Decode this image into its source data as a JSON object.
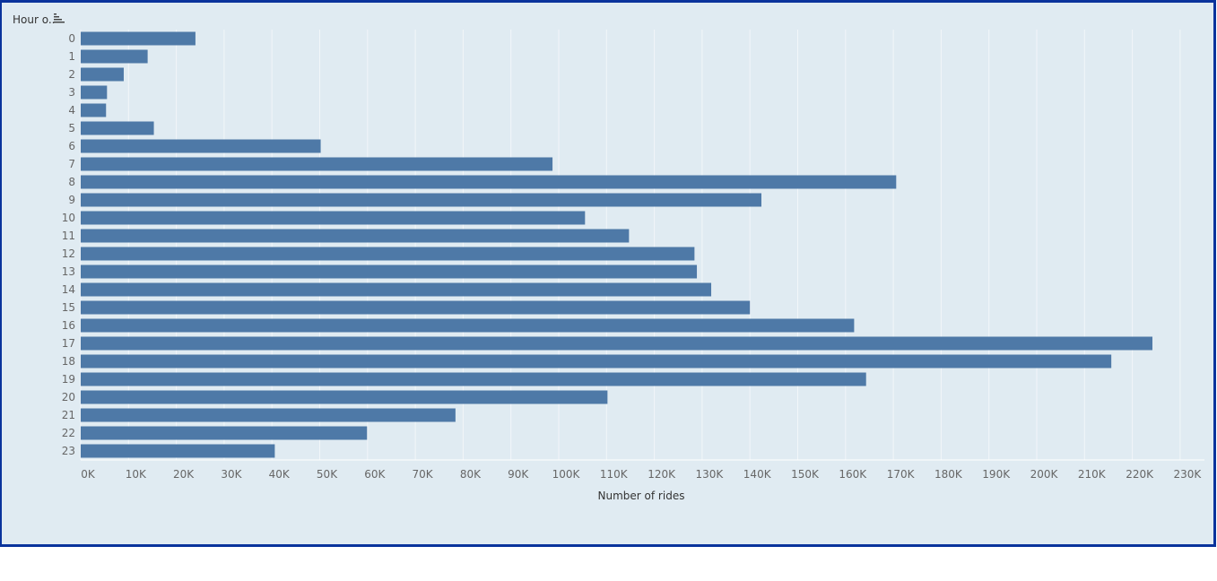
{
  "header": {
    "field_label": "Hour o..",
    "sort_icon": "sort-descending-icon"
  },
  "colors": {
    "bar": "#4e79a7",
    "background": "#e0ebf2",
    "border": "#0a339c",
    "gridline": "#f2f6f9"
  },
  "chart_data": {
    "type": "bar",
    "orientation": "horizontal",
    "categories": [
      "0",
      "1",
      "2",
      "3",
      "4",
      "5",
      "6",
      "7",
      "8",
      "9",
      "10",
      "11",
      "12",
      "13",
      "14",
      "15",
      "16",
      "17",
      "18",
      "19",
      "20",
      "21",
      "22",
      "23"
    ],
    "values": [
      24000,
      14000,
      9000,
      5500,
      5300,
      15300,
      50200,
      98700,
      170600,
      142400,
      105500,
      114700,
      128400,
      128900,
      131900,
      140000,
      161800,
      224200,
      215600,
      164300,
      110200,
      78400,
      59900,
      40600
    ],
    "xlabel": "Number of rides",
    "ylabel": "Hour o..",
    "xlim": [
      0,
      235000
    ],
    "x_ticks": [
      "0K",
      "10K",
      "20K",
      "30K",
      "40K",
      "50K",
      "60K",
      "70K",
      "80K",
      "90K",
      "100K",
      "110K",
      "120K",
      "130K",
      "140K",
      "150K",
      "160K",
      "170K",
      "180K",
      "190K",
      "200K",
      "210K",
      "220K",
      "230K"
    ],
    "grid": "vertical"
  }
}
